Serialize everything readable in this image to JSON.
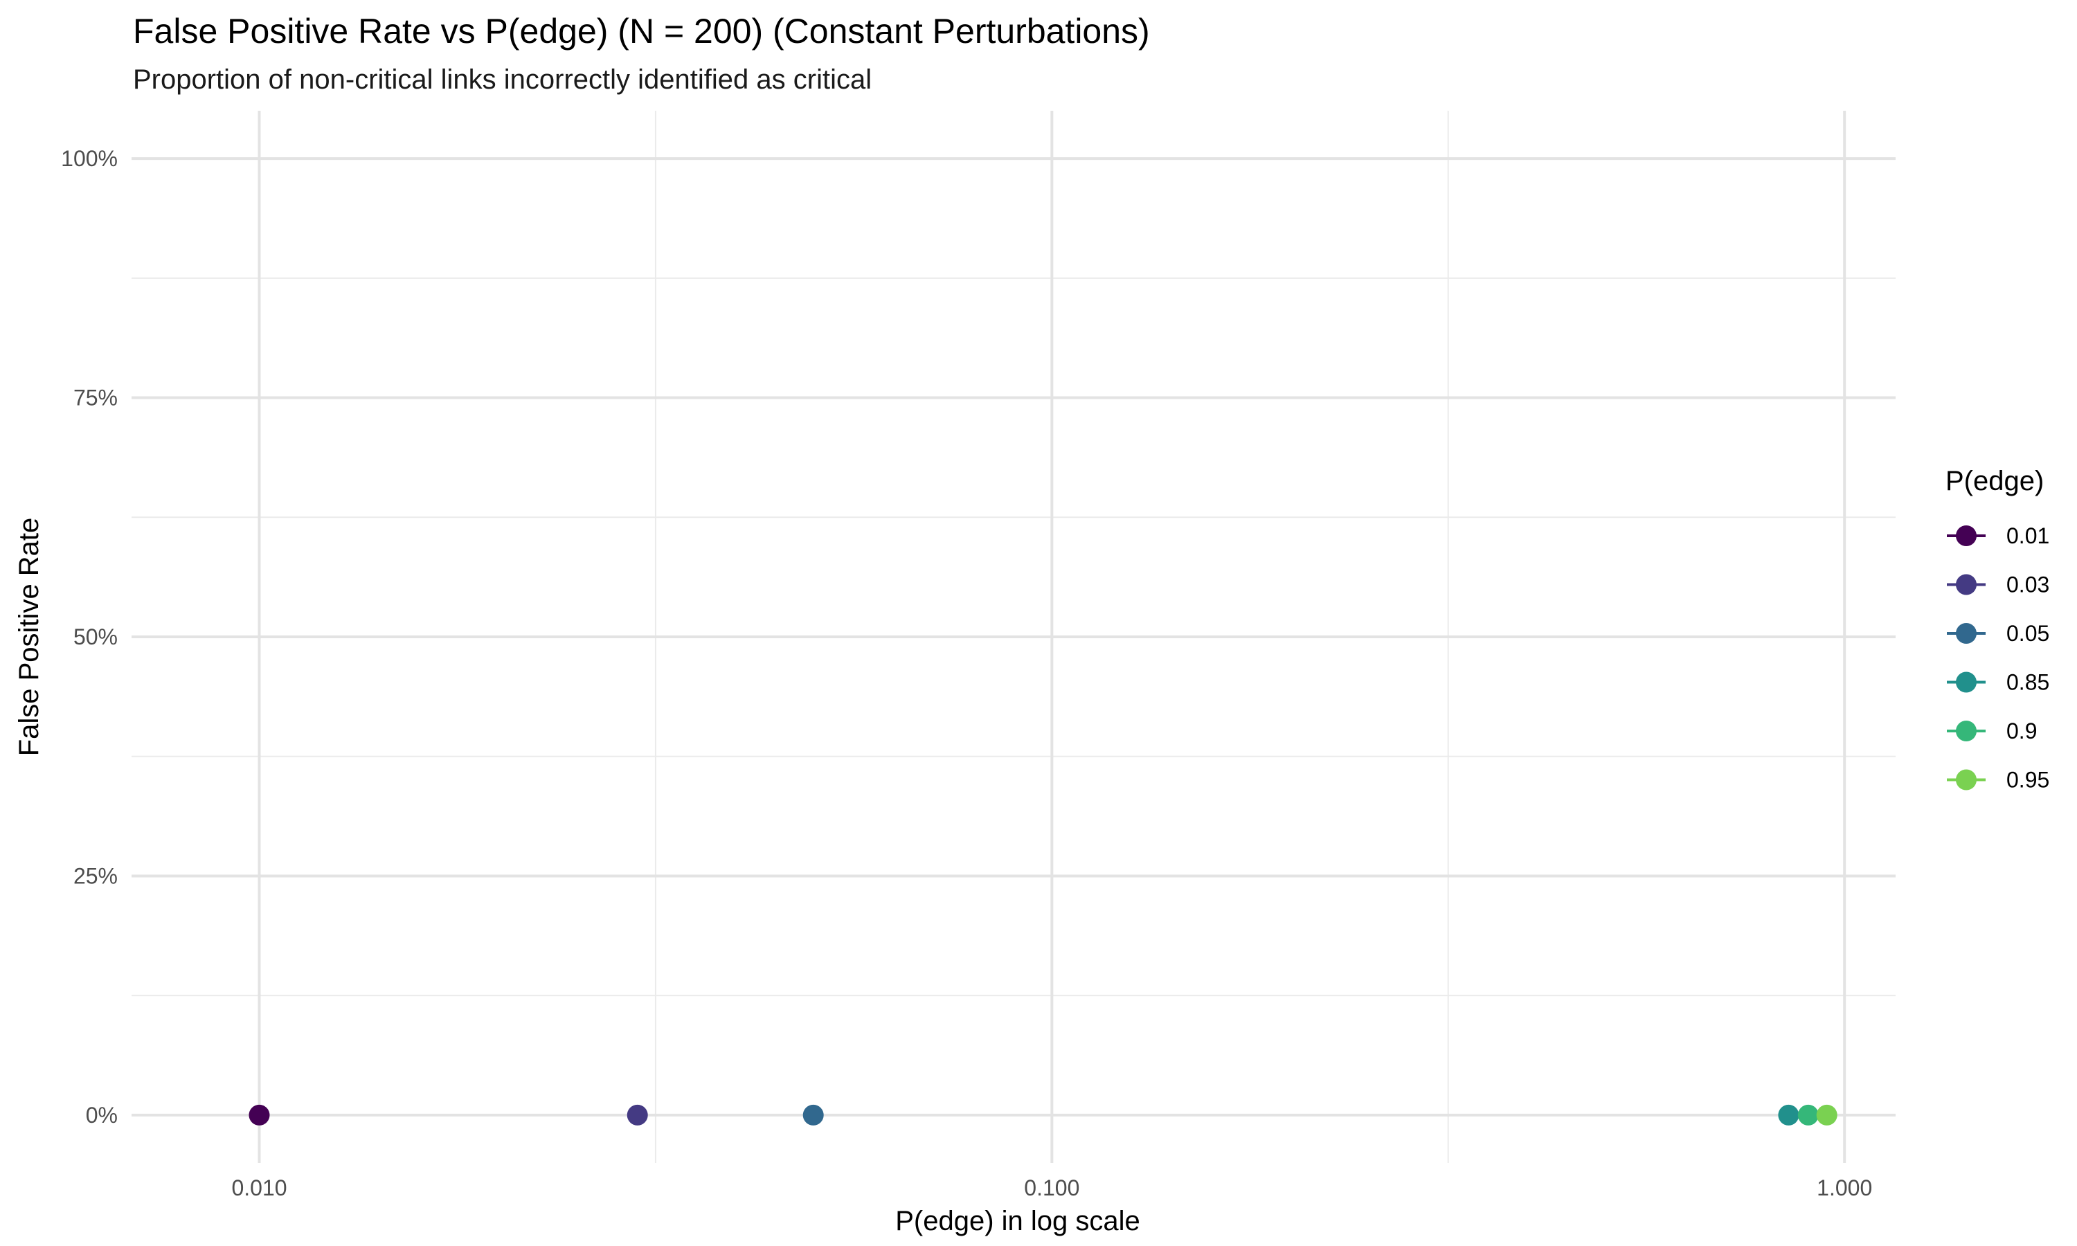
{
  "chart_data": {
    "type": "scatter",
    "title": "False Positive Rate vs P(edge) (N = 200) (Constant Perturbations)",
    "subtitle": "Proportion of non-critical links incorrectly identified as critical",
    "xlabel": "P(edge) in log scale",
    "ylabel": "False Positive Rate",
    "x_scale": "log10",
    "xlim": [
      0.0069,
      1.16
    ],
    "ylim": [
      -0.05,
      1.05
    ],
    "x_ticks": [
      {
        "value": 0.01,
        "label": "0.010"
      },
      {
        "value": 0.1,
        "label": "0.100"
      },
      {
        "value": 1,
        "label": "1.000"
      }
    ],
    "y_ticks": [
      {
        "value": 0,
        "label": "0%"
      },
      {
        "value": 0.25,
        "label": "25%"
      },
      {
        "value": 0.5,
        "label": "50%"
      },
      {
        "value": 0.75,
        "label": "75%"
      },
      {
        "value": 1,
        "label": "100%"
      }
    ],
    "grid": true,
    "legend": {
      "title": "P(edge)",
      "position": "right"
    },
    "series": [
      {
        "name": "0.01",
        "color": "#440154",
        "x": [
          0.01
        ],
        "y": [
          0
        ]
      },
      {
        "name": "0.03",
        "color": "#443A83",
        "x": [
          0.03
        ],
        "y": [
          0
        ]
      },
      {
        "name": "0.05",
        "color": "#31688E",
        "x": [
          0.05
        ],
        "y": [
          0
        ]
      },
      {
        "name": "0.85",
        "color": "#21908C",
        "x": [
          0.85
        ],
        "y": [
          0
        ]
      },
      {
        "name": "0.9",
        "color": "#35B779",
        "x": [
          0.9
        ],
        "y": [
          0
        ]
      },
      {
        "name": "0.95",
        "color": "#7AD151",
        "x": [
          0.95
        ],
        "y": [
          0
        ]
      }
    ]
  }
}
